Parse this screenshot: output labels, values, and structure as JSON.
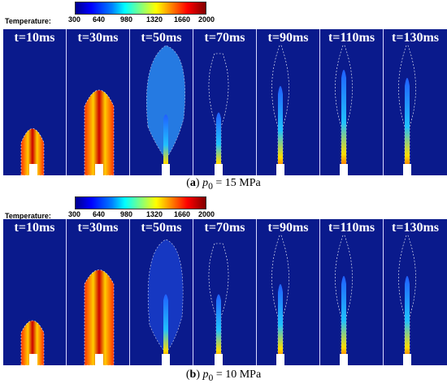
{
  "panels": [
    {
      "colorbar": {
        "title": "Temperature:",
        "ticks": [
          "300",
          "640",
          "980",
          "1320",
          "1660",
          "2000"
        ]
      },
      "frames": [
        "t=10ms",
        "t=30ms",
        "t=50ms",
        "t=70ms",
        "t=90ms",
        "t=110ms",
        "t=130ms"
      ],
      "caption": {
        "label": "a",
        "var": "p",
        "sub": "0",
        "value": "= 15 MPa"
      }
    },
    {
      "colorbar": {
        "title": "Temperature:",
        "ticks": [
          "300",
          "640",
          "980",
          "1320",
          "1660",
          "2000"
        ]
      },
      "frames": [
        "t=10ms",
        "t=30ms",
        "t=50ms",
        "t=70ms",
        "t=90ms",
        "t=110ms",
        "t=130ms"
      ],
      "caption": {
        "label": "b",
        "var": "p",
        "sub": "0",
        "value": "= 10 MPa"
      }
    }
  ]
}
